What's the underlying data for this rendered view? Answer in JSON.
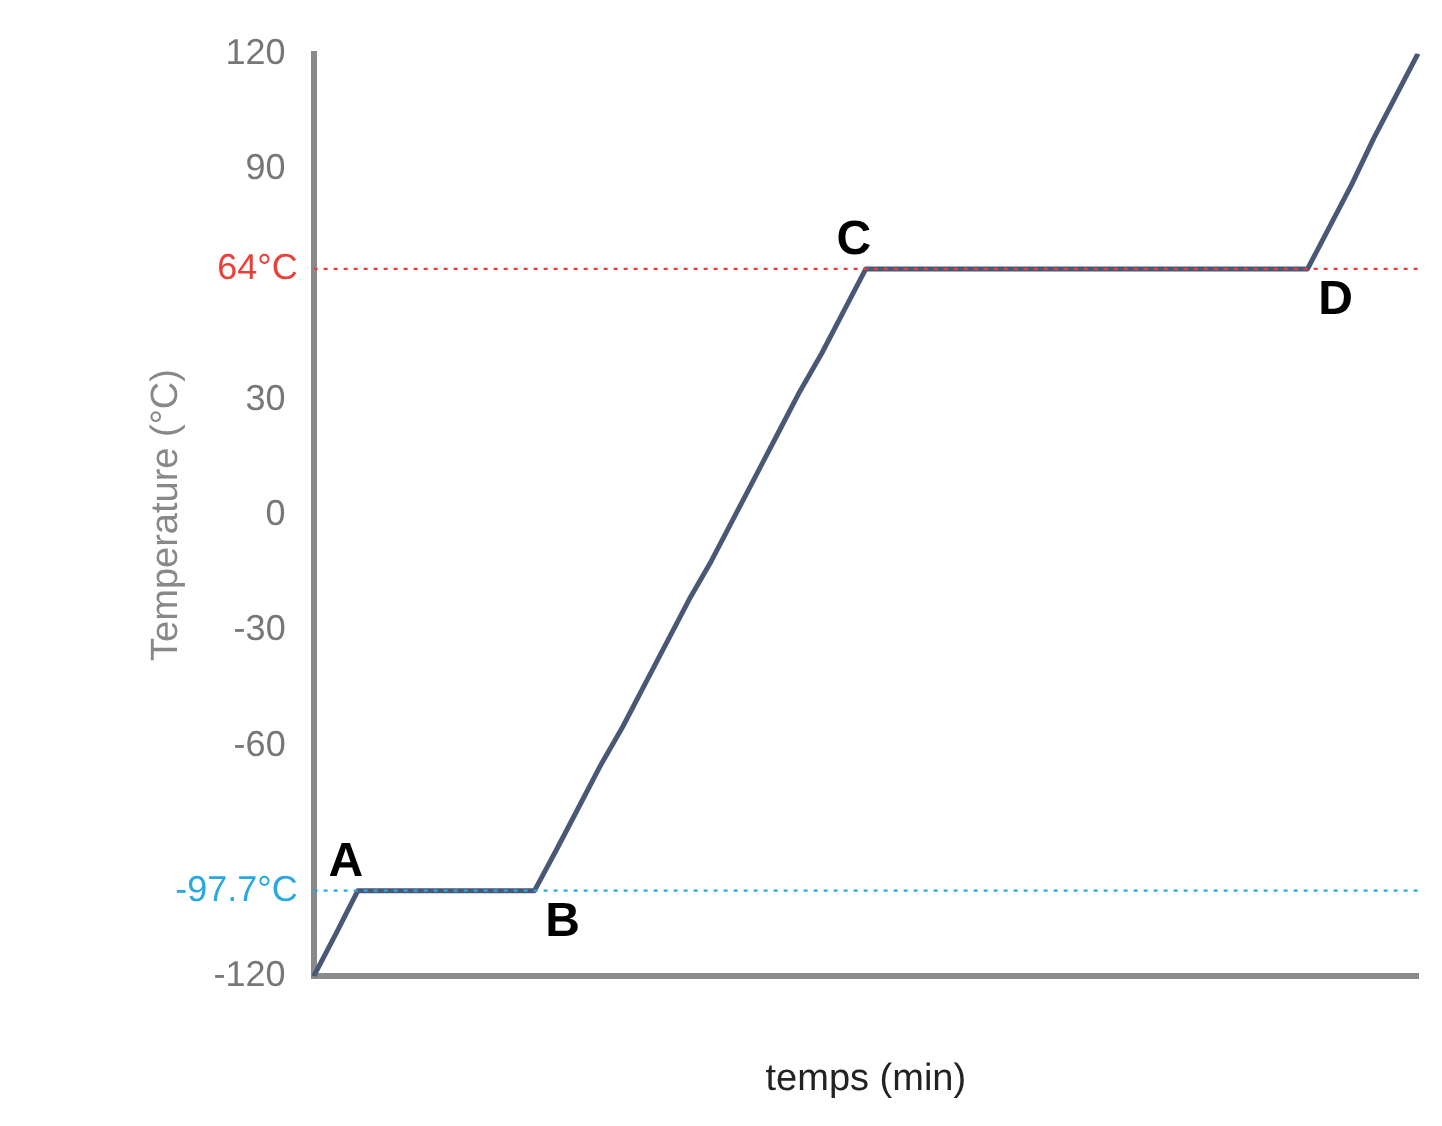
{
  "chart_data": {
    "type": "line",
    "xlabel": "temps (min)",
    "ylabel": "Temperature (°C)",
    "categories": [
      null,
      null,
      null,
      null,
      null,
      null,
      null,
      null,
      null,
      null,
      null,
      null,
      null,
      null,
      null,
      null,
      null,
      null,
      null,
      null,
      null,
      null,
      null,
      null,
      null,
      null,
      null,
      null,
      null,
      null,
      null,
      null,
      null,
      null,
      null,
      null,
      null,
      null,
      null,
      null,
      null,
      null,
      null,
      null,
      null,
      null,
      null,
      null,
      null,
      null,
      null
    ],
    "series": [
      {
        "color": "#4a5878",
        "values": [
          -120,
          -109,
          -97.7,
          -97.7,
          -97.7,
          -97.7,
          -97.7,
          -97.7,
          -97.7,
          -97.7,
          -97.7,
          -87,
          -76,
          -65,
          -55,
          -44,
          -33,
          -22,
          -12,
          -1,
          10,
          21,
          32,
          42,
          53,
          64,
          64,
          64,
          64,
          64,
          64,
          64,
          64,
          64,
          64,
          64,
          64,
          64,
          64,
          64,
          64,
          64,
          64,
          64,
          64,
          64,
          75,
          86,
          98,
          109,
          120
        ]
      }
    ],
    "ylim": [
      -120,
      120
    ],
    "yticks": [
      -120,
      -60,
      -30,
      0,
      30,
      90,
      120
    ],
    "tick_labels": "y",
    "grid": false,
    "legend": false,
    "marker": "none",
    "line_style": "solid",
    "ref_lines": [
      {
        "axis": "y",
        "value": 64,
        "label": "64°C",
        "color": "#e8403a",
        "line_style": "dotted"
      },
      {
        "axis": "y",
        "value": -97.7,
        "label": "-97.7°C",
        "color": "#29a8e0",
        "line_style": "dotted"
      }
    ],
    "annotations": [
      {
        "text": "A",
        "y": -97.7
      },
      {
        "text": "B",
        "y": -97.7
      },
      {
        "text": "C",
        "y": 64
      },
      {
        "text": "D",
        "y": 64
      }
    ]
  }
}
